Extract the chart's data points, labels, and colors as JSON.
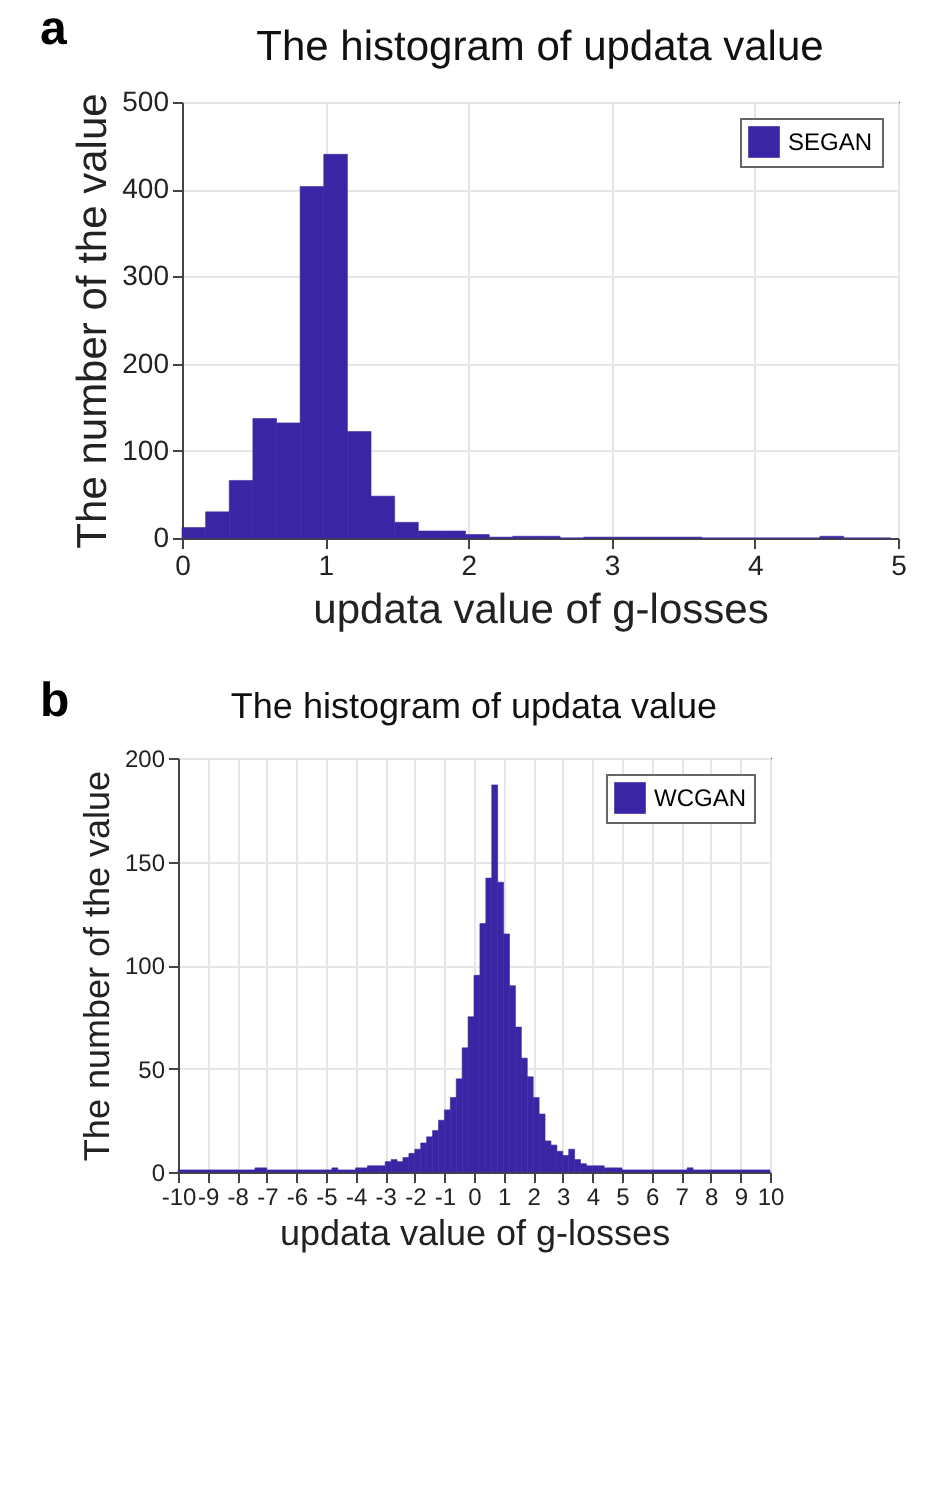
{
  "chart_data": [
    {
      "type": "histogram",
      "title": "The histogram of updata value",
      "xlabel": "updata value of g-losses",
      "ylabel": "The number of the value",
      "annotations": [
        "a"
      ],
      "legend": "top right",
      "grid": true,
      "xlim": [
        0,
        5
      ],
      "xticks": [
        0,
        1,
        2,
        3,
        4,
        5
      ],
      "ylim": [
        0,
        500
      ],
      "yticks": [
        0,
        100,
        200,
        300,
        400,
        500
      ],
      "bins": [
        0,
        0.165,
        0.33,
        0.495,
        0.66,
        0.825,
        0.99,
        1.155,
        1.32,
        1.485,
        1.65,
        1.815,
        1.98,
        2.145,
        2.31,
        2.475,
        2.64,
        2.805,
        2.97,
        3.135,
        3.3,
        3.465,
        3.63,
        3.795,
        3.96,
        4.125,
        4.29,
        4.455,
        4.62,
        4.785,
        4.95
      ],
      "series": [
        {
          "name": "SEGAN",
          "color": "#3a26a4",
          "values": [
            12,
            30,
            66,
            137,
            132,
            403,
            440,
            122,
            48,
            18,
            8,
            8,
            4,
            1,
            2,
            2,
            0,
            1,
            1,
            1,
            1,
            1,
            0,
            0,
            0,
            0,
            0,
            2,
            0,
            0
          ]
        }
      ]
    },
    {
      "type": "histogram",
      "title": "The histogram of updata value",
      "xlabel": "updata value of g-losses",
      "ylabel": "The number of the value",
      "annotations": [
        "b"
      ],
      "legend": "top right",
      "grid": true,
      "xlim": [
        -10,
        10
      ],
      "xticks": [
        -10,
        -9,
        -8,
        -7,
        -6,
        -5,
        -4,
        -3,
        -2,
        -1,
        0,
        1,
        2,
        3,
        4,
        5,
        6,
        7,
        8,
        9,
        10
      ],
      "ylim": [
        0,
        200
      ],
      "yticks": [
        0,
        50,
        100,
        150,
        200
      ],
      "bins": [
        -10,
        -9.8,
        -9.6,
        -9.4,
        -9.2,
        -9,
        -8.8,
        -8.6,
        -8.4,
        -8.2,
        -8,
        -7.8,
        -7.6,
        -7.4,
        -7.2,
        -7,
        -6.8,
        -6.6,
        -6.4,
        -6.2,
        -6,
        -5.8,
        -5.6,
        -5.4,
        -5.2,
        -5,
        -4.8,
        -4.6,
        -4.4,
        -4.2,
        -4,
        -3.8,
        -3.6,
        -3.4,
        -3.2,
        -3,
        -2.8,
        -2.6,
        -2.4,
        -2.2,
        -2,
        -1.8,
        -1.6,
        -1.4,
        -1.2,
        -1,
        -0.8,
        -0.6,
        -0.4,
        -0.2,
        0,
        0.2,
        0.4,
        0.6,
        0.8,
        1,
        1.2,
        1.4,
        1.6,
        1.8,
        2,
        2.2,
        2.4,
        2.6,
        2.8,
        3,
        3.2,
        3.4,
        3.6,
        3.8,
        4,
        4.2,
        4.4,
        4.6,
        4.8,
        5,
        5.2,
        5.4,
        5.6,
        5.8,
        6,
        6.2,
        6.4,
        6.6,
        6.8,
        7,
        7.2,
        7.4,
        7.6,
        7.8,
        8,
        8.2,
        8.4,
        8.6,
        8.8,
        9,
        9.2,
        9.4,
        9.6,
        9.8,
        10
      ],
      "series": [
        {
          "name": "WCGAN",
          "color": "#3a26a4",
          "values": [
            1,
            1,
            1,
            1,
            1,
            1,
            1,
            1,
            1,
            1,
            1,
            1,
            1,
            2,
            2,
            1,
            1,
            1,
            1,
            1,
            1,
            1,
            1,
            1,
            1,
            1,
            2,
            1,
            1,
            1,
            2,
            2,
            3,
            3,
            3,
            5,
            6,
            5,
            7,
            9,
            11,
            14,
            17,
            20,
            25,
            30,
            36,
            45,
            60,
            75,
            95,
            120,
            142,
            187,
            140,
            115,
            90,
            70,
            55,
            46,
            36,
            28,
            15,
            13,
            10,
            8,
            11,
            6,
            4,
            3,
            3,
            3,
            2,
            2,
            2,
            1,
            1,
            1,
            1,
            1,
            1,
            1,
            1,
            1,
            1,
            1,
            2,
            1,
            1,
            1,
            1,
            1,
            1,
            1,
            1,
            1,
            1,
            1,
            1,
            1
          ]
        }
      ]
    }
  ]
}
